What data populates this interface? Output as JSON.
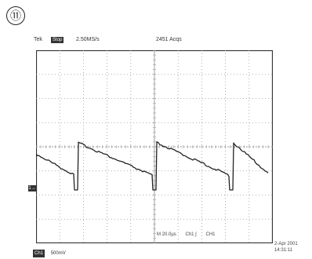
{
  "figure": {
    "number": "⑪"
  },
  "scope": {
    "header": {
      "brand": "Tek",
      "run_state": "Stop",
      "sample_rate": "2.50MS/s",
      "trigger_readout": "2451 Acqs"
    },
    "reference_marker": "1→",
    "measurements": {
      "horizontal": "M 20.0μs",
      "trigger_source": "Ch1 ∫",
      "trigger_level": "CH1"
    },
    "channel": {
      "label": "Ch1",
      "scale": "500mV"
    },
    "timestamp": {
      "date": "2-Apr 2001",
      "time": "14:31:11"
    },
    "waveform": {
      "description_colors": {
        "trace": "#222222",
        "grid": "#999999",
        "frame": "#333333"
      }
    }
  }
}
